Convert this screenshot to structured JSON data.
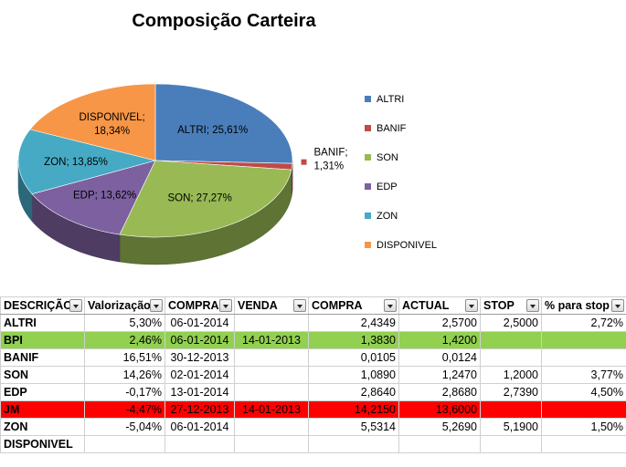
{
  "chart_data": {
    "type": "pie",
    "title": "Composição Carteira",
    "slices": [
      {
        "name": "ALTRI",
        "value": 25.61,
        "label": "ALTRI; 25,61%",
        "color": "#4a7ebb"
      },
      {
        "name": "BANIF",
        "value": 1.31,
        "label": "BANIF;\n1,31%",
        "color": "#be4b48"
      },
      {
        "name": "SON",
        "value": 27.27,
        "label": "SON; 27,27%",
        "color": "#98b954"
      },
      {
        "name": "EDP",
        "value": 13.62,
        "label": "EDP; 13,62%",
        "color": "#7d60a0"
      },
      {
        "name": "ZON",
        "value": 13.85,
        "label": "ZON; 13,85%",
        "color": "#46aac5"
      },
      {
        "name": "DISPONIVEL",
        "value": 18.34,
        "label": "DISPONIVEL;\n18,34%",
        "color": "#f79646"
      }
    ],
    "legend": {
      "placement": "right",
      "entries": [
        "ALTRI",
        "BANIF",
        "SON",
        "EDP",
        "ZON",
        "DISPONIVEL"
      ]
    }
  },
  "table": {
    "headers": [
      "DESCRIÇÃO",
      "Valorização",
      "COMPRA",
      "VENDA",
      "COMPRA",
      "ACTUAL",
      "STOP",
      "% para stop"
    ],
    "rows": [
      {
        "highlight": "",
        "cells": [
          "ALTRI",
          "5,30%",
          "06-01-2014",
          "",
          "2,4349",
          "2,5700",
          "2,5000",
          "2,72%"
        ]
      },
      {
        "highlight": "green",
        "cells": [
          "BPI",
          "2,46%",
          "06-01-2014",
          "14-01-2013",
          "1,3830",
          "1,4200",
          "",
          ""
        ]
      },
      {
        "highlight": "",
        "cells": [
          "BANIF",
          "16,51%",
          "30-12-2013",
          "",
          "0,0105",
          "0,0124",
          "",
          ""
        ]
      },
      {
        "highlight": "",
        "cells": [
          "SON",
          "14,26%",
          "02-01-2014",
          "",
          "1,0890",
          "1,2470",
          "1,2000",
          "3,77%"
        ]
      },
      {
        "highlight": "",
        "cells": [
          "EDP",
          "-0,17%",
          "13-01-2014",
          "",
          "2,8640",
          "2,8680",
          "2,7390",
          "4,50%"
        ]
      },
      {
        "highlight": "red",
        "cells": [
          "JM",
          "-4,47%",
          "27-12-2013",
          "14-01-2013",
          "14,2150",
          "13,6000",
          "",
          ""
        ]
      },
      {
        "highlight": "",
        "cells": [
          "ZON",
          "-5,04%",
          "06-01-2014",
          "",
          "5,5314",
          "5,2690",
          "5,1900",
          "1,50%"
        ]
      },
      {
        "highlight": "",
        "cells": [
          "DISPONIVEL",
          "",
          "",
          "",
          "",
          "",
          "",
          ""
        ]
      }
    ]
  }
}
